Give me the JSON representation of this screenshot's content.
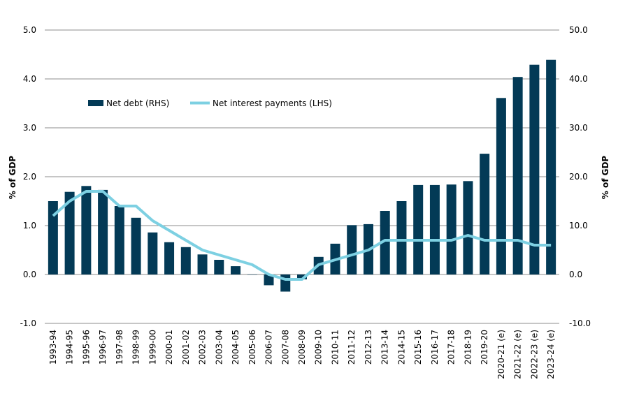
{
  "chart_data": {
    "type": "bar+line",
    "title": "",
    "ylabel_left": "% of GDP",
    "ylabel_right": "% of GDP",
    "ylim_left": [
      -1.0,
      5.0
    ],
    "ylim_right": [
      -10.0,
      50.0
    ],
    "yticks_left": [
      "-1.0",
      "0.0",
      "1.0",
      "2.0",
      "3.0",
      "4.0",
      "5.0"
    ],
    "yticks_right": [
      "-10.0",
      "0.0",
      "10.0",
      "20.0",
      "30.0",
      "40.0",
      "50.0"
    ],
    "grid": true,
    "legend_position": "top-left",
    "categories": [
      "1993-94",
      "1994-95",
      "1995-96",
      "1996-97",
      "1997-98",
      "1998-99",
      "1999-00",
      "2000-01",
      "2001-02",
      "2002-03",
      "2003-04",
      "2004-05",
      "2005-06",
      "2006-07",
      "2007-08",
      "2008-09",
      "2009-10",
      "2010-11",
      "2011-12",
      "2012-13",
      "2013-14",
      "2014-15",
      "2015-16",
      "2016-17",
      "2017-18",
      "2018-19",
      "2019-20",
      "2020-21 (e)",
      "2021-22 (e)",
      "2022-23 (e)",
      "2023-24 (e)"
    ],
    "series": [
      {
        "name": "Net debt (RHS)",
        "type": "bar",
        "axis": "right",
        "color": "#033a56",
        "values": [
          15.0,
          16.9,
          18.1,
          17.3,
          14.0,
          11.6,
          8.6,
          6.6,
          5.6,
          4.1,
          3.0,
          1.7,
          0.0,
          -2.2,
          -3.5,
          -1.0,
          3.6,
          6.3,
          10.1,
          10.3,
          13.0,
          15.0,
          18.3,
          18.3,
          18.4,
          19.1,
          24.7,
          36.1,
          40.4,
          42.9,
          43.9
        ]
      },
      {
        "name": "Net interest payments (LHS)",
        "type": "line",
        "axis": "left",
        "color": "#7dd0e2",
        "values": [
          1.2,
          1.5,
          1.7,
          1.7,
          1.4,
          1.4,
          1.1,
          0.9,
          0.7,
          0.5,
          0.4,
          0.3,
          0.2,
          0.0,
          -0.1,
          -0.1,
          0.2,
          0.3,
          0.4,
          0.5,
          0.7,
          0.7,
          0.7,
          0.7,
          0.7,
          0.8,
          0.7,
          0.7,
          0.7,
          0.6,
          0.6
        ]
      }
    ]
  }
}
